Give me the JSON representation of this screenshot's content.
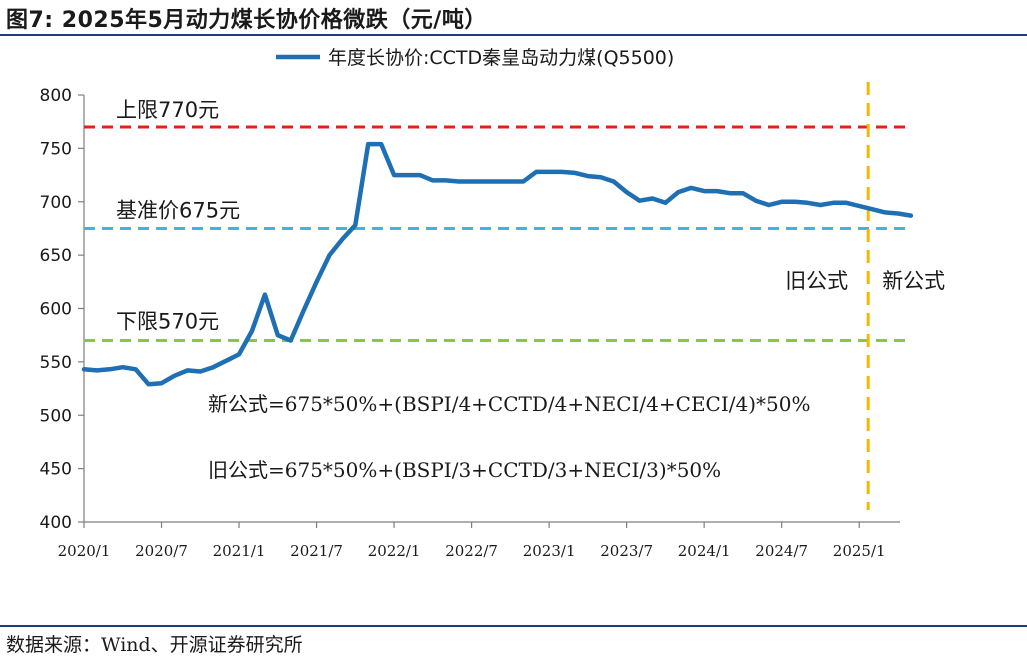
{
  "header": {
    "title": "图7:  2025年5月动力煤长协价格微跌（元/吨）"
  },
  "footer": {
    "source": "数据来源：Wind、开源证券研究所"
  },
  "colors": {
    "series": "#1f6fb4",
    "upper": "#e2211c",
    "base": "#3cb4e5",
    "lower": "#8cc63e",
    "divider": "#f5b800"
  },
  "chart_data": {
    "type": "line",
    "title": "",
    "xlabel": "",
    "ylabel": "",
    "ylim": [
      400,
      800
    ],
    "yticks": [
      400,
      450,
      500,
      550,
      600,
      650,
      700,
      750,
      800
    ],
    "xticks": [
      "2020/1",
      "2020/7",
      "2021/1",
      "2021/7",
      "2022/1",
      "2022/7",
      "2023/1",
      "2023/7",
      "2024/1",
      "2024/7",
      "2025/1"
    ],
    "legend": {
      "position": "top-center"
    },
    "grid": false,
    "series": [
      {
        "name": "年度长协价:CCTD秦皇岛动力煤(Q5500)",
        "x": [
          "2020/1",
          "2020/2",
          "2020/3",
          "2020/4",
          "2020/5",
          "2020/6",
          "2020/7",
          "2020/8",
          "2020/9",
          "2020/10",
          "2020/11",
          "2020/12",
          "2021/1",
          "2021/2",
          "2021/3",
          "2021/4",
          "2021/5",
          "2021/6",
          "2021/7",
          "2021/8",
          "2021/9",
          "2021/10",
          "2021/11",
          "2021/12",
          "2022/1",
          "2022/2",
          "2022/3",
          "2022/4",
          "2022/5",
          "2022/6",
          "2022/7",
          "2022/8",
          "2022/9",
          "2022/10",
          "2022/11",
          "2022/12",
          "2023/1",
          "2023/2",
          "2023/3",
          "2023/4",
          "2023/5",
          "2023/6",
          "2023/7",
          "2023/8",
          "2023/9",
          "2023/10",
          "2023/11",
          "2023/12",
          "2024/1",
          "2024/2",
          "2024/3",
          "2024/4",
          "2024/5",
          "2024/6",
          "2024/7",
          "2024/8",
          "2024/9",
          "2024/10",
          "2024/11",
          "2024/12",
          "2025/1",
          "2025/2",
          "2025/3",
          "2025/4",
          "2025/5"
        ],
        "values": [
          543,
          542,
          543,
          545,
          543,
          529,
          530,
          537,
          542,
          541,
          545,
          551,
          557,
          579,
          613,
          575,
          570,
          598,
          625,
          650,
          665,
          678,
          754,
          754,
          725,
          725,
          725,
          720,
          720,
          719,
          719,
          719,
          719,
          719,
          719,
          728,
          728,
          728,
          727,
          724,
          723,
          719,
          709,
          701,
          703,
          699,
          709,
          713,
          710,
          710,
          708,
          708,
          701,
          697,
          700,
          700,
          699,
          697,
          699,
          699,
          696,
          693,
          690,
          689,
          687
        ]
      }
    ],
    "reference_lines": [
      {
        "label": "上限770元",
        "value": 770
      },
      {
        "label": "基准价675元",
        "value": 675
      },
      {
        "label": "下限570元",
        "value": 570
      }
    ],
    "divider": {
      "at": "2025/1",
      "left_label": "旧公式",
      "right_label": "新公式"
    },
    "annotations": [
      "新公式=675*50%+(BSPI/4+CCTD/4+NECI/4+CECI/4)*50%",
      "旧公式=675*50%+(BSPI/3+CCTD/3+NECI/3)*50%"
    ]
  }
}
